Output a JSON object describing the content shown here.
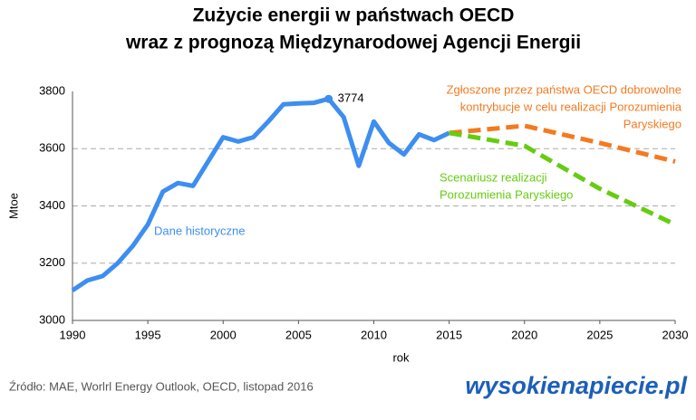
{
  "chart_data": {
    "type": "line",
    "title": [
      "Zużycie energii w państwach OECD",
      "wraz z prognozą Międzynarodowej Agencji Energii"
    ],
    "y_label": "Mtoe",
    "x_label": "rok",
    "xlim": [
      1990,
      2030
    ],
    "xticks": [
      1990,
      1995,
      2000,
      2005,
      2010,
      2015,
      2020,
      2025,
      2030
    ],
    "ylim": [
      3000,
      3800
    ],
    "yticks": [
      3000,
      3200,
      3400,
      3600,
      3800
    ],
    "grid": true,
    "series": [
      {
        "name": "Dane historyczne",
        "color": "#3d8ef0",
        "dashed": false,
        "x": [
          1990,
          1991,
          1992,
          1993,
          1994,
          1995,
          1996,
          1997,
          1998,
          1999,
          2000,
          2001,
          2002,
          2003,
          2004,
          2005,
          2006,
          2007,
          2008,
          2009,
          2010,
          2011,
          2012,
          2013,
          2014,
          2015
        ],
        "values": [
          3105,
          3140,
          3155,
          3200,
          3260,
          3335,
          3450,
          3480,
          3470,
          3555,
          3640,
          3625,
          3640,
          3695,
          3755,
          3758,
          3760,
          3774,
          3710,
          3540,
          3695,
          3620,
          3580,
          3650,
          3630,
          3655
        ],
        "peak_index": 17
      },
      {
        "name": [
          "Zgłoszone przez państwa OECD dobrowolne",
          "kontrybucje w celu realizacji Porozumienia",
          "Paryskiego"
        ],
        "color": "#f47a20",
        "dashed": true,
        "x": [
          2015,
          2020,
          2025,
          2030
        ],
        "values": [
          3655,
          3680,
          3620,
          3555
        ]
      },
      {
        "name": [
          "Scenariusz realizacji",
          "Porozumienia Paryskiego"
        ],
        "color": "#66cc11",
        "dashed": true,
        "x": [
          2015,
          2020,
          2025,
          2030
        ],
        "values": [
          3655,
          3610,
          3460,
          3335
        ]
      }
    ],
    "source": "Źródło: MAE, Worlrl Energy Outlook, OECD, listopad 2016",
    "logo": "wysokienapiecie.pl"
  }
}
